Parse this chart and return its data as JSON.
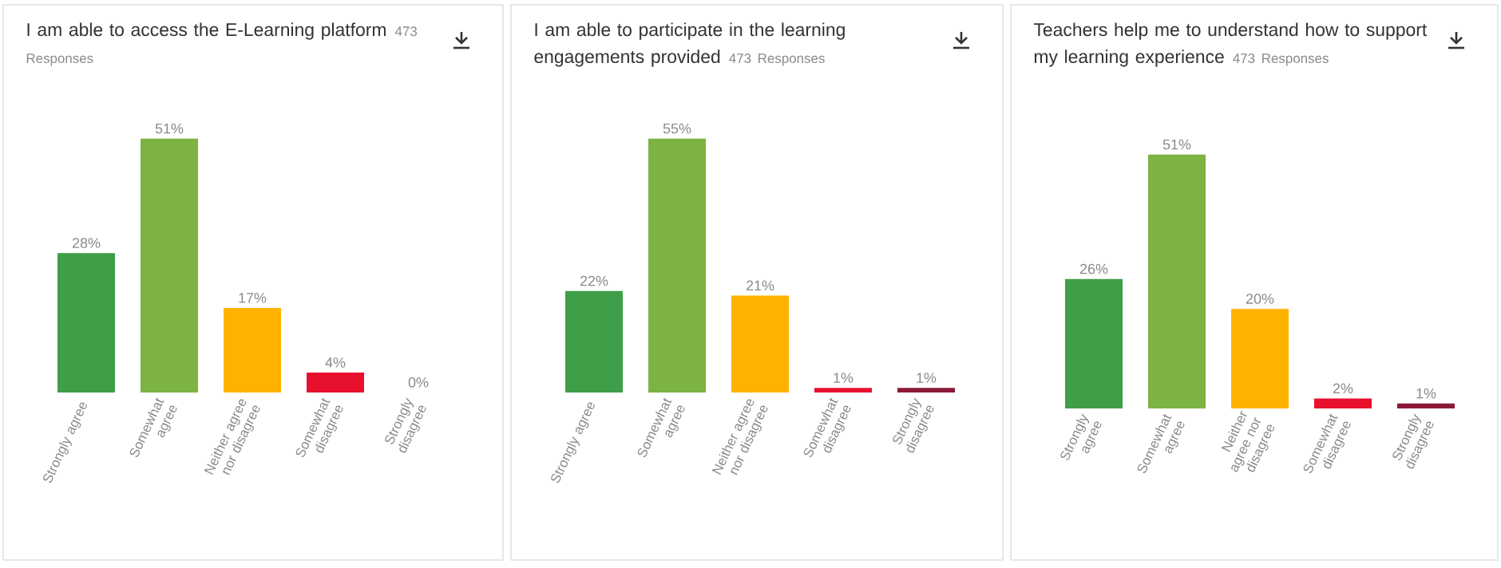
{
  "chart_data": [
    {
      "type": "bar",
      "title": "I am able to access the E-Learning platform",
      "subtitle": "473 Responses",
      "categories": [
        "Strongly agree",
        "Somewhat agree",
        "Neither agree nor disagree",
        "Somewhat disagree",
        "Strongly disagree"
      ],
      "values": [
        28,
        51,
        17,
        4,
        0
      ],
      "colors": [
        "#3f9e48",
        "#7cb342",
        "#ffb300",
        "#e8112d",
        "#8b1a3a"
      ],
      "value_labels": [
        "28%",
        "51%",
        "17%",
        "4%",
        "0%"
      ]
    },
    {
      "type": "bar",
      "title": "I am able to participate in the learning engagements provided",
      "subtitle": "473 Responses",
      "categories": [
        "Strongly agree",
        "Somewhat agree",
        "Neither agree nor disagree",
        "Somewhat disagree",
        "Strongly disagree"
      ],
      "values": [
        22,
        55,
        21,
        1,
        1
      ],
      "colors": [
        "#3f9e48",
        "#7cb342",
        "#ffb300",
        "#e8112d",
        "#8b1a3a"
      ],
      "value_labels": [
        "22%",
        "55%",
        "21%",
        "1%",
        "1%"
      ]
    },
    {
      "type": "bar",
      "title": "Teachers help me to understand how to support my learning experience",
      "subtitle": "473 Responses",
      "categories": [
        "Strongly agree",
        "Somewhat agree",
        "Neither agree nor disagree",
        "Somewhat disagree",
        "Strongly disagree"
      ],
      "values": [
        26,
        51,
        20,
        2,
        1
      ],
      "colors": [
        "#3f9e48",
        "#7cb342",
        "#ffb300",
        "#e8112d",
        "#8b1a3a"
      ],
      "value_labels": [
        "26%",
        "51%",
        "20%",
        "2%",
        "1%"
      ]
    }
  ]
}
